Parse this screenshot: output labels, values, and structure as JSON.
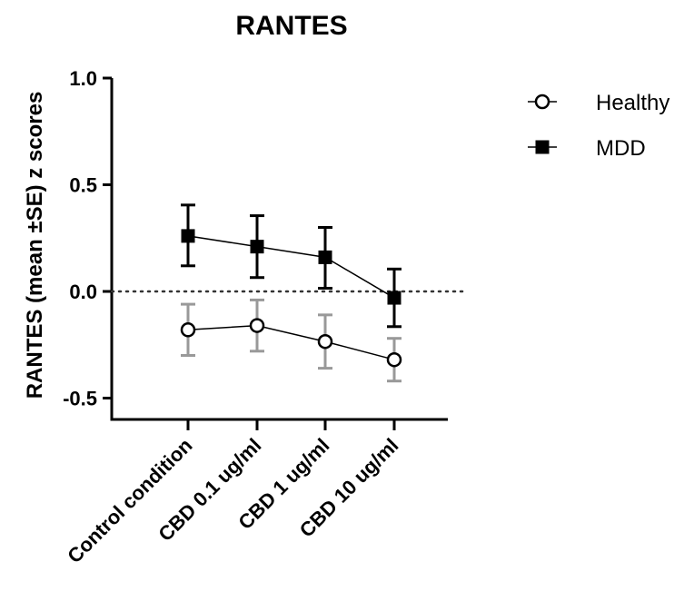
{
  "chart_data": {
    "type": "line",
    "title": "RANTES",
    "xlabel": "",
    "ylabel": "RANTES (mean ±SE) z scores",
    "categories": [
      "Control condition",
      "CBD 0.1 ug/ml",
      "CBD 1 ug/ml",
      "CBD 10 ug/ml"
    ],
    "ylim": [
      -0.6,
      1.0
    ],
    "yticks": [
      -0.5,
      0.0,
      0.5,
      1.0
    ],
    "ytick_labels": [
      "-0.5",
      "0.0",
      "0.5",
      "1.0"
    ],
    "reference_line": {
      "y": 0.0,
      "style": "dotted"
    },
    "grid": false,
    "legend_position": "top-right",
    "series": [
      {
        "name": "Healthy",
        "marker": "open-circle",
        "color": "#000000",
        "error_bar_color": "#999999",
        "values": [
          -0.18,
          -0.16,
          -0.235,
          -0.32
        ],
        "error_low": [
          -0.3,
          -0.28,
          -0.36,
          -0.42
        ],
        "error_high": [
          -0.06,
          -0.04,
          -0.11,
          -0.22
        ]
      },
      {
        "name": "MDD",
        "marker": "filled-square",
        "color": "#000000",
        "error_bar_color": "#000000",
        "values": [
          0.26,
          0.21,
          0.16,
          -0.03
        ],
        "error_low": [
          0.12,
          0.065,
          0.015,
          -0.165
        ],
        "error_high": [
          0.405,
          0.355,
          0.3,
          0.105
        ]
      }
    ]
  }
}
